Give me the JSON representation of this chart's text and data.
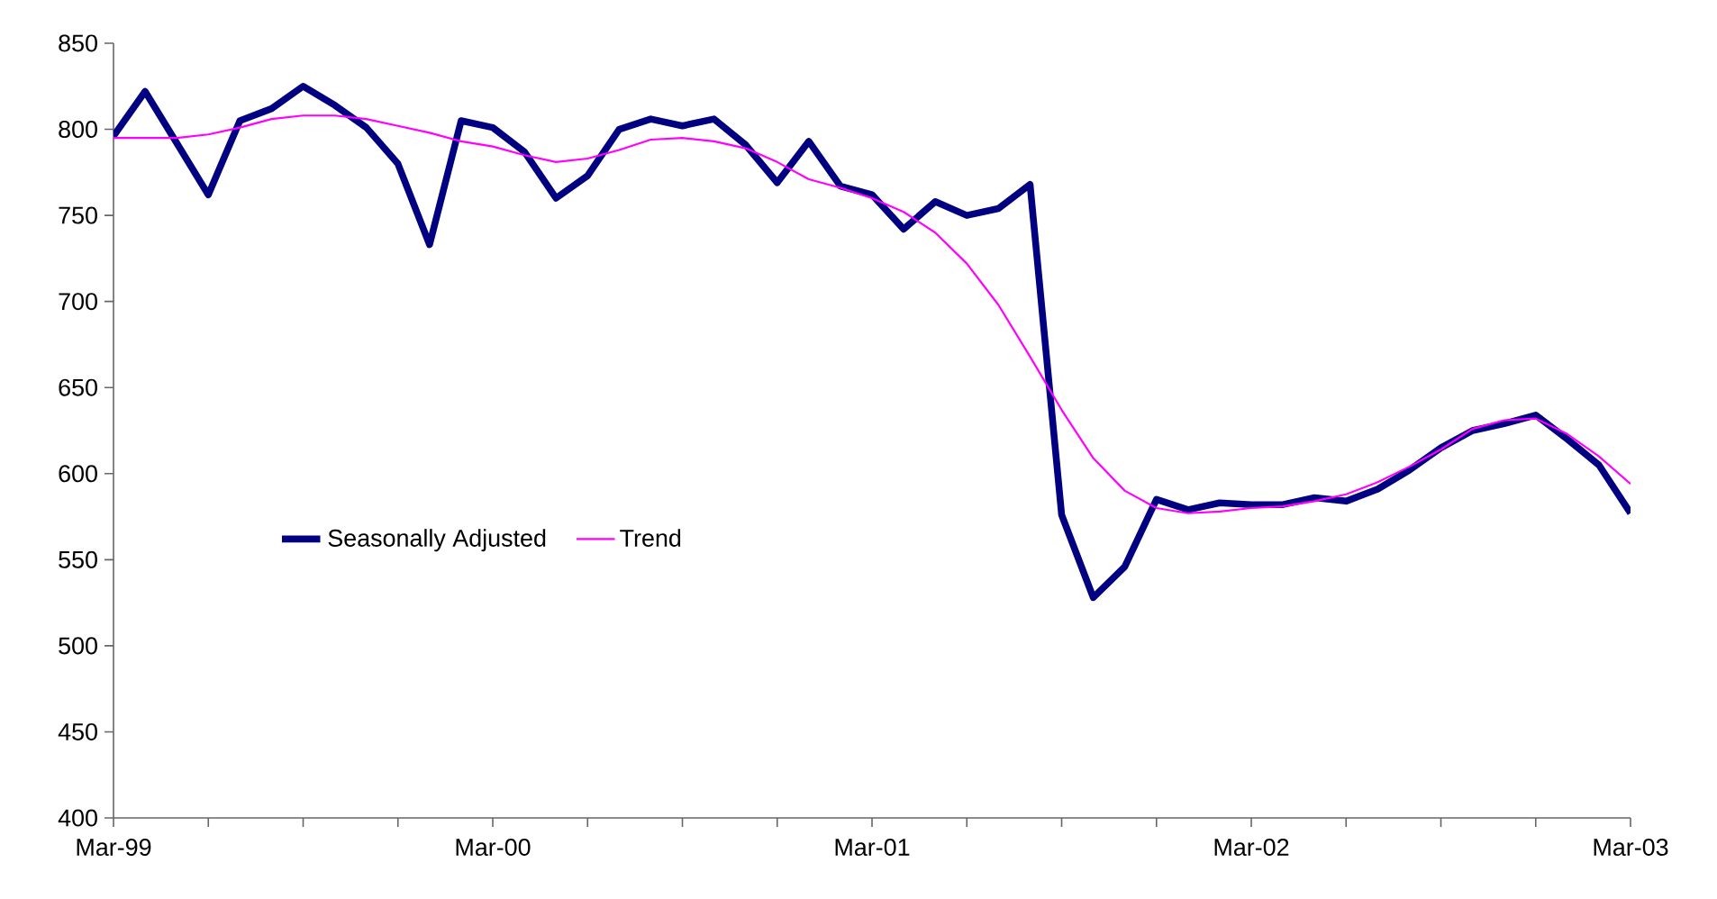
{
  "chart_data": {
    "type": "line",
    "x": [
      "1999-03",
      "1999-04",
      "1999-05",
      "1999-06",
      "1999-07",
      "1999-08",
      "1999-09",
      "1999-10",
      "1999-11",
      "1999-12",
      "2000-01",
      "2000-02",
      "2000-03",
      "2000-04",
      "2000-05",
      "2000-06",
      "2000-07",
      "2000-08",
      "2000-09",
      "2000-10",
      "2000-11",
      "2000-12",
      "2001-01",
      "2001-02",
      "2001-03",
      "2001-04",
      "2001-05",
      "2001-06",
      "2001-07",
      "2001-08",
      "2001-09",
      "2001-10",
      "2001-11",
      "2001-12",
      "2002-01",
      "2002-02",
      "2002-03",
      "2002-04",
      "2002-05",
      "2002-06",
      "2002-07",
      "2002-08",
      "2002-09",
      "2002-10",
      "2002-11",
      "2002-12",
      "2003-01",
      "2003-02",
      "2003-03"
    ],
    "series": [
      {
        "name": "Seasonally Adjusted",
        "color": "#000080",
        "values": [
          796,
          822,
          792,
          762,
          805,
          812,
          825,
          814,
          801,
          780,
          733,
          805,
          801,
          787,
          760,
          773,
          800,
          806,
          802,
          806,
          791,
          769,
          793,
          767,
          762,
          742,
          758,
          750,
          754,
          768,
          576,
          528,
          546,
          585,
          579,
          583,
          582,
          582,
          586,
          584,
          591,
          602,
          615,
          625,
          629,
          634,
          620,
          605,
          577
        ]
      },
      {
        "name": "Trend",
        "color": "#ff00ff",
        "values": [
          795,
          795,
          795,
          797,
          801,
          806,
          808,
          808,
          806,
          802,
          798,
          793,
          790,
          785,
          781,
          783,
          788,
          794,
          795,
          793,
          789,
          781,
          771,
          766,
          760,
          752,
          740,
          722,
          698,
          668,
          637,
          609,
          590,
          580,
          577,
          578,
          580,
          581,
          584,
          588,
          595,
          604,
          614,
          626,
          631,
          632,
          623,
          610,
          594
        ]
      }
    ],
    "xlim": [
      "1999-03",
      "2003-03"
    ],
    "xticks": [
      {
        "value": "1999-03",
        "label": "Mar-99"
      },
      {
        "value": "1999-06",
        "label": null
      },
      {
        "value": "1999-09",
        "label": null
      },
      {
        "value": "1999-12",
        "label": null
      },
      {
        "value": "2000-03",
        "label": "Mar-00"
      },
      {
        "value": "2000-06",
        "label": null
      },
      {
        "value": "2000-09",
        "label": null
      },
      {
        "value": "2000-12",
        "label": null
      },
      {
        "value": "2001-03",
        "label": "Mar-01"
      },
      {
        "value": "2001-06",
        "label": null
      },
      {
        "value": "2001-09",
        "label": null
      },
      {
        "value": "2001-12",
        "label": null
      },
      {
        "value": "2002-03",
        "label": "Mar-02"
      },
      {
        "value": "2002-06",
        "label": null
      },
      {
        "value": "2002-09",
        "label": null
      },
      {
        "value": "2002-12",
        "label": null
      },
      {
        "value": "2003-03",
        "label": "Mar-03"
      }
    ],
    "ylim": [
      400,
      850
    ],
    "yticks": [
      400,
      450,
      500,
      550,
      600,
      650,
      700,
      750,
      800,
      850
    ],
    "grid": false,
    "legend": "left",
    "marker": "none",
    "line_style": "solid"
  }
}
